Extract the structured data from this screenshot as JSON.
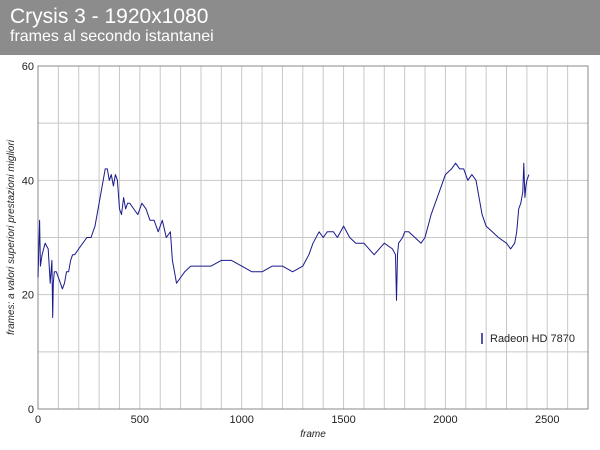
{
  "header": {
    "title": "Crysis 3 - 1920x1080",
    "subtitle": "frames al secondo istantanei"
  },
  "colors": {
    "header_bg": "#8c8c8c",
    "series_line": "#1a1a8c",
    "grid": "#c8c8c8"
  },
  "chart_data": {
    "type": "line",
    "title": "Crysis 3 - 1920x1080",
    "subtitle": "frames al secondo istantanei",
    "xlabel": "frame",
    "ylabel": "frames: a valori superiori prestazioni migliori",
    "xlim": [
      0,
      2700
    ],
    "ylim": [
      0,
      60
    ],
    "xticks": [
      0,
      500,
      1000,
      1500,
      2000,
      2500
    ],
    "yticks": [
      0,
      20,
      40,
      60
    ],
    "grid": true,
    "legend_position": "bottom-right",
    "series": [
      {
        "name": "Radeon HD 7870",
        "x": [
          0,
          8,
          12,
          20,
          35,
          50,
          60,
          68,
          72,
          75,
          80,
          90,
          100,
          110,
          120,
          130,
          140,
          150,
          160,
          170,
          180,
          200,
          220,
          240,
          260,
          280,
          300,
          320,
          330,
          340,
          350,
          360,
          370,
          380,
          390,
          400,
          410,
          420,
          430,
          440,
          450,
          470,
          490,
          510,
          530,
          550,
          570,
          590,
          610,
          630,
          650,
          660,
          670,
          680,
          700,
          720,
          750,
          800,
          850,
          900,
          950,
          1000,
          1050,
          1100,
          1150,
          1200,
          1250,
          1300,
          1330,
          1350,
          1380,
          1400,
          1420,
          1450,
          1470,
          1500,
          1530,
          1560,
          1600,
          1650,
          1700,
          1740,
          1755,
          1760,
          1765,
          1770,
          1790,
          1800,
          1820,
          1850,
          1880,
          1900,
          1930,
          1950,
          1970,
          2000,
          2030,
          2050,
          2070,
          2090,
          2110,
          2130,
          2150,
          2180,
          2200,
          2230,
          2260,
          2300,
          2320,
          2340,
          2350,
          2360,
          2370,
          2380,
          2385,
          2390,
          2395,
          2400,
          2410
        ],
        "values": [
          23,
          33,
          25,
          27,
          29,
          28,
          22,
          26,
          16,
          22,
          24,
          24,
          23,
          22,
          21,
          22,
          24,
          24,
          26,
          27,
          27,
          28,
          29,
          30,
          30,
          32,
          36,
          40,
          42,
          42,
          40,
          41,
          39,
          41,
          40,
          35,
          34,
          37,
          35,
          36,
          36,
          35,
          34,
          36,
          35,
          33,
          33,
          31,
          33,
          30,
          31,
          26,
          24,
          22,
          23,
          24,
          25,
          25,
          25,
          26,
          26,
          25,
          24,
          24,
          25,
          25,
          24,
          25,
          27,
          29,
          31,
          30,
          31,
          31,
          30,
          32,
          30,
          29,
          29,
          27,
          29,
          28,
          27,
          19,
          27,
          29,
          30,
          31,
          31,
          30,
          29,
          30,
          34,
          36,
          38,
          41,
          42,
          43,
          42,
          42,
          40,
          41,
          40,
          34,
          32,
          31,
          30,
          29,
          28,
          29,
          31,
          35,
          36,
          38,
          43,
          37,
          39,
          40,
          41
        ]
      }
    ]
  }
}
